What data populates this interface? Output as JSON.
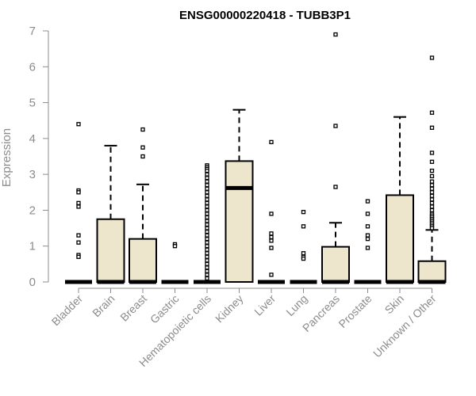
{
  "chart_data": {
    "type": "box",
    "title": "ENSG00000220418 - TUBB3P1",
    "xlabel": "",
    "ylabel": "Expression",
    "ylim": [
      0,
      7
    ],
    "yticks": [
      0,
      1,
      2,
      3,
      4,
      5,
      6,
      7
    ],
    "grid": false,
    "legend": "none",
    "colors": {
      "box_fill": "#ede6cc",
      "stroke": "#000000",
      "axis": "#8c8c8c"
    },
    "categories": [
      "Bladder",
      "Brain",
      "Breast",
      "Gastric",
      "Hematopoietic cells",
      "Kidney",
      "Liver",
      "Lung",
      "Pancreas",
      "Prostate",
      "Skin",
      "Unknown / Other"
    ],
    "boxes": [
      {
        "category": "Bladder",
        "q1": 0,
        "median": 0,
        "q3": 0,
        "whisker_low": 0,
        "whisker_high": 0,
        "outliers": [
          4.4,
          2.55,
          2.5,
          2.2,
          2.1,
          1.3,
          1.1,
          0.75,
          0.7
        ]
      },
      {
        "category": "Brain",
        "q1": 0,
        "median": 0,
        "q3": 1.75,
        "whisker_low": 0,
        "whisker_high": 3.8,
        "outliers": []
      },
      {
        "category": "Breast",
        "q1": 0,
        "median": 0,
        "q3": 1.2,
        "whisker_low": 0,
        "whisker_high": 2.72,
        "outliers": [
          4.25,
          3.75,
          3.5
        ]
      },
      {
        "category": "Gastric",
        "q1": 0,
        "median": 0,
        "q3": 0,
        "whisker_low": 0,
        "whisker_high": 0,
        "outliers": [
          1.05,
          1.0
        ]
      },
      {
        "category": "Hematopoietic cells",
        "q1": 0,
        "median": 0,
        "q3": 0,
        "whisker_low": 0,
        "whisker_high": 0,
        "outliers": [
          3.25,
          3.2,
          3.15,
          3.1,
          3.0,
          2.9,
          2.8,
          2.7,
          2.6,
          2.5,
          2.4,
          2.3,
          2.2,
          2.1,
          2.0,
          1.9,
          1.8,
          1.7,
          1.6,
          1.5,
          1.4,
          1.3,
          1.2,
          1.1,
          1.0,
          0.9,
          0.8,
          0.7,
          0.6,
          0.5,
          0.4,
          0.3,
          0.2,
          0.1
        ]
      },
      {
        "category": "Kidney",
        "q1": 0,
        "median": 2.62,
        "q3": 3.37,
        "whisker_low": 0,
        "whisker_high": 4.8,
        "outliers": []
      },
      {
        "category": "Liver",
        "q1": 0,
        "median": 0,
        "q3": 0,
        "whisker_low": 0,
        "whisker_high": 0,
        "outliers": [
          3.9,
          1.9,
          1.35,
          1.25,
          1.15,
          0.95,
          0.2
        ]
      },
      {
        "category": "Lung",
        "q1": 0,
        "median": 0,
        "q3": 0,
        "whisker_low": 0,
        "whisker_high": 0,
        "outliers": [
          1.95,
          1.55,
          0.8,
          0.7,
          0.65
        ]
      },
      {
        "category": "Pancreas",
        "q1": 0,
        "median": 0,
        "q3": 0.98,
        "whisker_low": 0,
        "whisker_high": 1.65,
        "outliers": [
          6.9,
          4.35,
          2.65
        ]
      },
      {
        "category": "Prostate",
        "q1": 0,
        "median": 0,
        "q3": 0,
        "whisker_low": 0,
        "whisker_high": 0,
        "outliers": [
          2.25,
          1.9,
          1.55,
          1.3,
          1.2,
          0.95
        ]
      },
      {
        "category": "Skin",
        "q1": 0,
        "median": 0,
        "q3": 2.42,
        "whisker_low": 0,
        "whisker_high": 4.6,
        "outliers": []
      },
      {
        "category": "Unknown / Other",
        "q1": 0,
        "median": 0,
        "q3": 0.58,
        "whisker_low": 0,
        "whisker_high": 1.45,
        "outliers": [
          6.25,
          4.72,
          4.3,
          3.6,
          3.35,
          3.1,
          2.95,
          2.8,
          2.7,
          2.6,
          2.5,
          2.4,
          2.3,
          2.2,
          2.1,
          2.0,
          1.9,
          1.85,
          1.8,
          1.75,
          1.7,
          1.65,
          1.6,
          1.55,
          1.5
        ]
      }
    ]
  }
}
